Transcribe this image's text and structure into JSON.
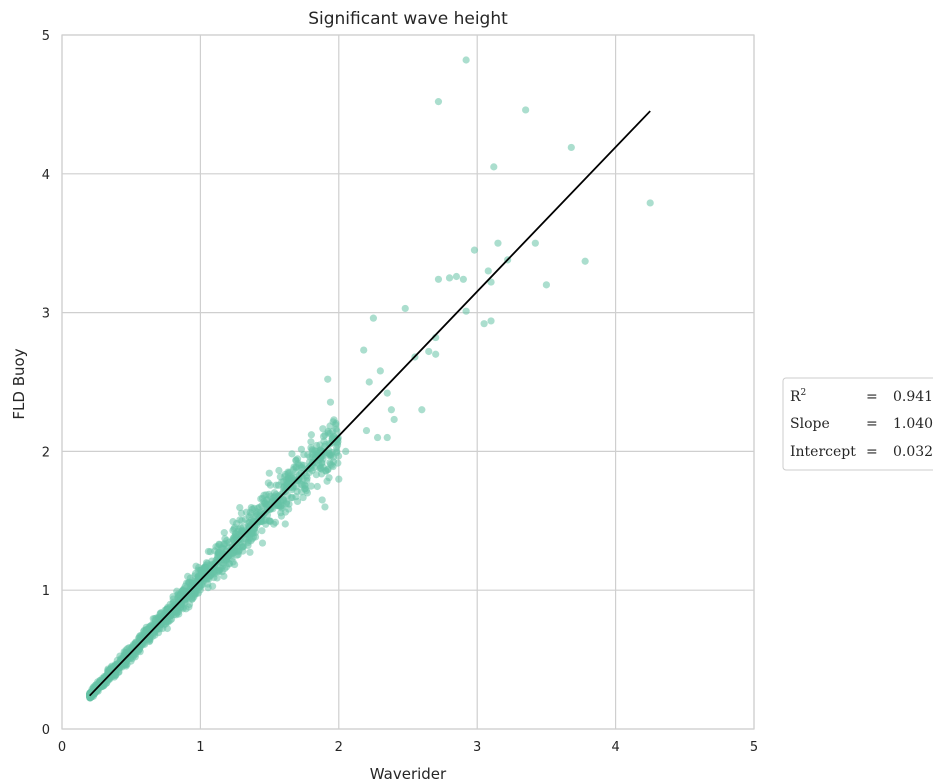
{
  "chart_data": {
    "type": "scatter",
    "title": "Significant wave height",
    "xlabel": "Waverider",
    "ylabel": "FLD Buoy",
    "xlim": [
      0,
      5
    ],
    "ylim": [
      0,
      5
    ],
    "x_ticks": [
      "0",
      "1",
      "2",
      "3",
      "4",
      "5"
    ],
    "y_ticks": [
      "0",
      "1",
      "2",
      "3",
      "4",
      "5"
    ],
    "grid": true,
    "point_color": "#66c2a5",
    "fit_line_color": "#000000",
    "fit_line": {
      "slope": 1.04,
      "intercept": 0.032,
      "x_range": [
        0.2,
        4.25
      ]
    },
    "stats": [
      {
        "label": "R²",
        "eq": "=",
        "value": "0.941"
      },
      {
        "label": "Slope",
        "eq": "=",
        "value": "1.040"
      },
      {
        "label": "Intercept",
        "eq": "=",
        "value": "0.032"
      }
    ],
    "legend_placement": "right",
    "outliers": [
      [
        2.92,
        4.82
      ],
      [
        2.72,
        4.52
      ],
      [
        3.35,
        4.46
      ],
      [
        3.68,
        4.19
      ],
      [
        3.12,
        4.05
      ],
      [
        4.25,
        3.79
      ],
      [
        3.42,
        3.5
      ],
      [
        3.15,
        3.5
      ],
      [
        2.98,
        3.45
      ],
      [
        3.22,
        3.38
      ],
      [
        3.78,
        3.37
      ],
      [
        3.08,
        3.3
      ],
      [
        3.1,
        3.22
      ],
      [
        2.85,
        3.26
      ],
      [
        2.8,
        3.25
      ],
      [
        2.72,
        3.24
      ],
      [
        2.9,
        3.24
      ],
      [
        3.5,
        3.2
      ],
      [
        2.48,
        3.03
      ],
      [
        2.92,
        3.01
      ],
      [
        3.1,
        2.94
      ],
      [
        3.05,
        2.92
      ],
      [
        2.25,
        2.96
      ],
      [
        2.7,
        2.82
      ],
      [
        2.65,
        2.72
      ],
      [
        2.7,
        2.7
      ],
      [
        2.55,
        2.68
      ],
      [
        2.18,
        2.73
      ],
      [
        2.3,
        2.58
      ],
      [
        2.6,
        2.3
      ],
      [
        1.92,
        2.52
      ],
      [
        2.22,
        2.5
      ],
      [
        2.35,
        2.42
      ],
      [
        2.38,
        2.3
      ],
      [
        2.4,
        2.23
      ],
      [
        2.28,
        2.1
      ],
      [
        2.35,
        2.1
      ],
      [
        2.2,
        2.15
      ],
      [
        1.95,
        1.9
      ],
      [
        2.0,
        1.8
      ],
      [
        2.05,
        2.0
      ],
      [
        1.88,
        1.65
      ],
      [
        1.8,
        1.75
      ],
      [
        1.9,
        1.6
      ]
    ],
    "cluster": {
      "n": 1400,
      "x_range": [
        0.2,
        2.0
      ],
      "spread_ratio": 0.07,
      "seed": 7
    }
  }
}
